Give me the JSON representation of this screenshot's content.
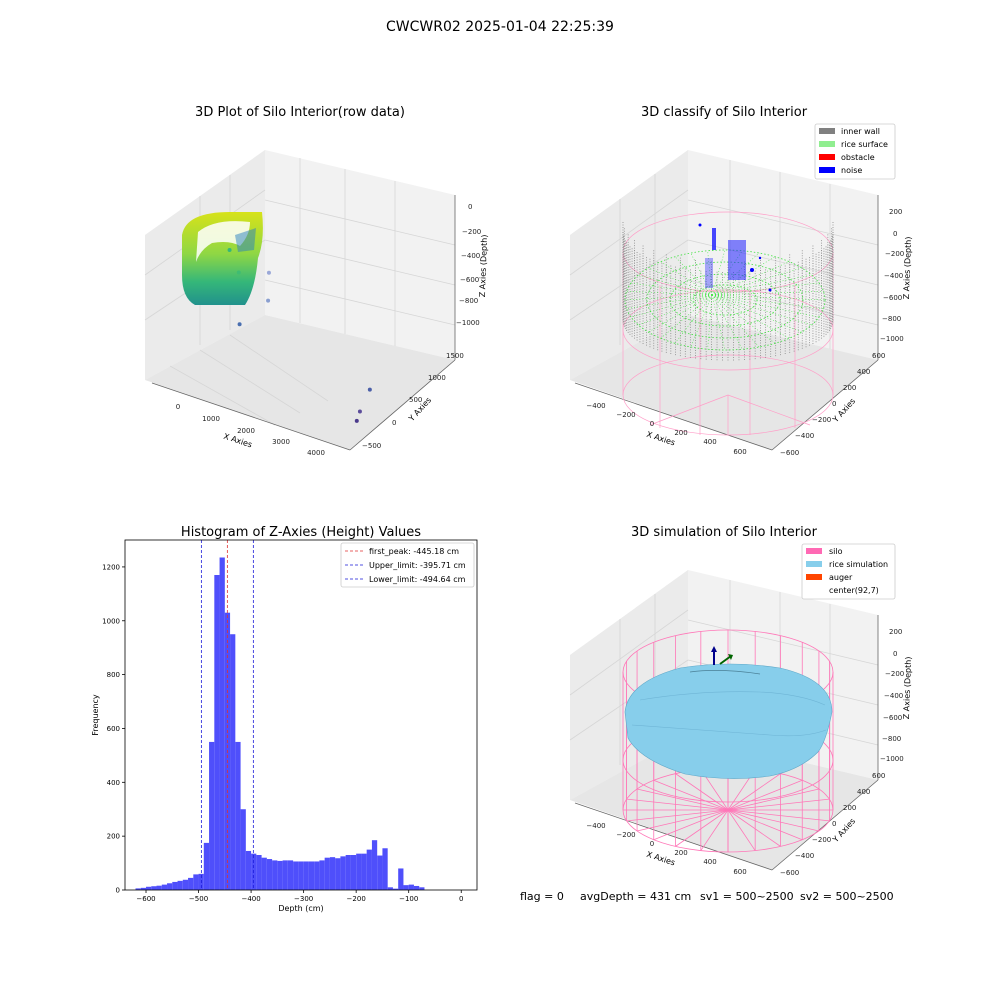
{
  "figure": {
    "suptitle": "CWCWR02 2025-01-04 22:25:39",
    "footer": {
      "flag": "flag = 0",
      "avg_depth": "avgDepth = 431 cm",
      "sv1": "sv1 = 500~2500",
      "sv2": "sv2 = 500~2500"
    }
  },
  "colors": {
    "histogram_bar": "#4f4ffb",
    "first_peak_line": "#e03030",
    "limit_line": "#1a1ad9",
    "inner_wall": "#808080",
    "rice_surface": "#90ee90",
    "obstacle": "#ff0000",
    "noise": "#0000ff",
    "silo": "#ff69b4",
    "rice_simulation": "#87ceeb",
    "auger": "#ff4500"
  },
  "chart_data": [
    {
      "type": "scatter",
      "projection": "3d",
      "title": "3D Plot of Silo Interior(row data)",
      "xlabel": "X Axies",
      "ylabel": "Y Axies",
      "zlabel": "Z Axies (Depth)",
      "x_ticks": [
        "0",
        "1000",
        "2000",
        "3000",
        "4000"
      ],
      "y_ticks": [
        "−500",
        "0",
        "500",
        "1000",
        "1500"
      ],
      "z_ticks": [
        "−1000",
        "−800",
        "−600",
        "−400",
        "−200",
        "0"
      ],
      "outlier_points": [
        {
          "x": 520,
          "y": 150,
          "z": -230
        },
        {
          "x": 830,
          "y": 80,
          "z": -340
        },
        {
          "x": 1260,
          "y": 380,
          "z": -380
        },
        {
          "x": 1470,
          "y": 170,
          "z": -500
        },
        {
          "x": 1270,
          "y": -300,
          "z": -560
        },
        {
          "x": 4040,
          "y": 170,
          "z": -880
        },
        {
          "x": 4110,
          "y": -120,
          "z": -950
        },
        {
          "x": 4130,
          "y": -210,
          "z": -990
        }
      ],
      "grid": true
    },
    {
      "type": "scatter",
      "projection": "3d",
      "title": "3D classify of Silo Interior",
      "xlabel": "X Axies",
      "ylabel": "Y Axies",
      "zlabel": "Z Axies (Depth)",
      "x_ticks": [
        "−400",
        "−200",
        "0",
        "200",
        "400",
        "600"
      ],
      "y_ticks": [
        "−600",
        "−400",
        "−200",
        "0",
        "200",
        "400",
        "600"
      ],
      "z_ticks": [
        "−1000",
        "−800",
        "−600",
        "−400",
        "−200",
        "0",
        "200"
      ],
      "legend": [
        "inner wall",
        "rice surface",
        "obstacle",
        "noise"
      ],
      "legend_position": "top-right",
      "grid": true
    },
    {
      "type": "bar",
      "title": "Histogram of Z-Axies (Height) Values",
      "xlabel": "Depth (cm)",
      "ylabel": "Frequency",
      "xlim": [
        -640,
        30
      ],
      "ylim": [
        0,
        1300
      ],
      "x_ticks": [
        -600,
        -500,
        -400,
        -300,
        -200,
        -100,
        0
      ],
      "y_ticks": [
        0,
        200,
        400,
        600,
        800,
        1000,
        1200
      ],
      "bin_left_edges": [
        -620,
        -610,
        -600,
        -590,
        -580,
        -570,
        -560,
        -550,
        -540,
        -530,
        -520,
        -510,
        -500,
        -490,
        -480,
        -470,
        -460,
        -450,
        -440,
        -430,
        -420,
        -410,
        -400,
        -390,
        -380,
        -370,
        -360,
        -350,
        -340,
        -330,
        -320,
        -310,
        -300,
        -290,
        -280,
        -270,
        -260,
        -250,
        -240,
        -230,
        -220,
        -210,
        -200,
        -190,
        -180,
        -170,
        -160,
        -150,
        -140,
        -130,
        -120,
        -110,
        -100,
        -90,
        -80,
        -70,
        -60,
        -50,
        -40,
        -30,
        -20,
        -10
      ],
      "bin_width": 10,
      "values": [
        6,
        8,
        12,
        14,
        16,
        20,
        25,
        30,
        34,
        38,
        45,
        58,
        60,
        175,
        550,
        1170,
        1235,
        1030,
        950,
        550,
        300,
        145,
        135,
        130,
        120,
        115,
        110,
        108,
        110,
        110,
        106,
        106,
        106,
        106,
        106,
        110,
        120,
        122,
        118,
        125,
        130,
        130,
        135,
        135,
        150,
        185,
        128,
        155,
        10,
        5,
        80,
        18,
        20,
        15,
        10,
        0,
        0,
        0,
        0,
        0,
        0,
        0
      ],
      "lines": [
        {
          "name": "first_peak: -445.18 cm",
          "x": -445.18,
          "color": "red"
        },
        {
          "name": "Upper_limit: -395.71 cm",
          "x": -395.71,
          "color": "blue"
        },
        {
          "name": "Lower_limit: -494.64 cm",
          "x": -494.64,
          "color": "blue"
        }
      ],
      "legend_position": "top-right",
      "grid": false
    },
    {
      "type": "surface",
      "projection": "3d",
      "title": "3D simulation of Silo Interior",
      "xlabel": "X Axies",
      "ylabel": "Y Axies",
      "zlabel": "Z Axies (Depth)",
      "x_ticks": [
        "−400",
        "−200",
        "0",
        "200",
        "400",
        "600"
      ],
      "y_ticks": [
        "−600",
        "−400",
        "−200",
        "0",
        "200",
        "400",
        "600"
      ],
      "z_ticks": [
        "−1000",
        "−800",
        "−600",
        "−400",
        "−200",
        "0",
        "200"
      ],
      "legend": [
        "silo",
        "rice simulation",
        "auger",
        "center(92,7)"
      ],
      "legend_position": "top-right",
      "grid": true
    }
  ]
}
